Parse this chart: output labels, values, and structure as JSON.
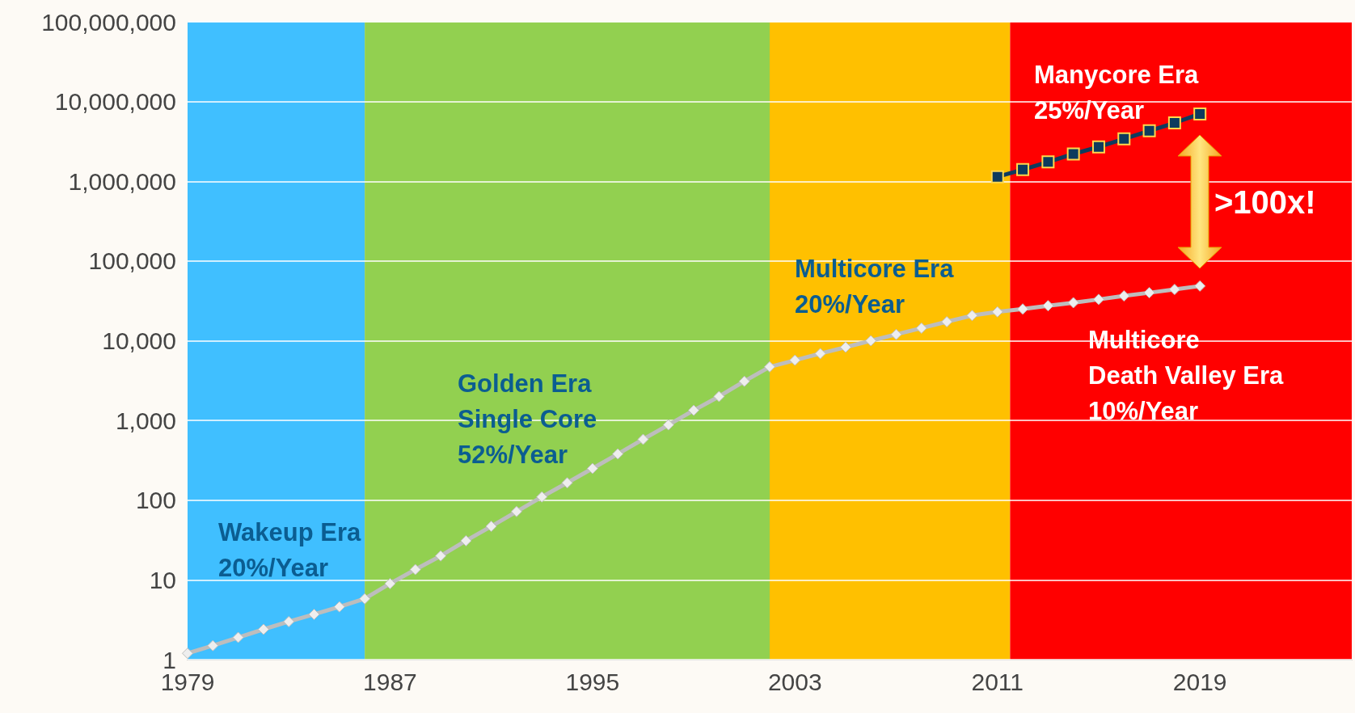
{
  "chart_data": {
    "type": "line",
    "log": "y",
    "grid": "y",
    "x": [
      1979,
      1980,
      1981,
      1982,
      1983,
      1984,
      1985,
      1986,
      1987,
      1988,
      1989,
      1990,
      1991,
      1992,
      1993,
      1994,
      1995,
      1996,
      1997,
      1998,
      1999,
      2000,
      2001,
      2002,
      2003,
      2004,
      2005,
      2006,
      2007,
      2008,
      2009,
      2010,
      2011,
      2012,
      2013,
      2014,
      2015,
      2016,
      2017,
      2018,
      2019
    ],
    "xlim": [
      1979,
      2025
    ],
    "xticks": [
      1979,
      1987,
      1995,
      2003,
      2011,
      2019
    ],
    "ylim": [
      1,
      100000000
    ],
    "yticks": [
      {
        "value": 1,
        "label": "1"
      },
      {
        "value": 10,
        "label": "10"
      },
      {
        "value": 100,
        "label": "100"
      },
      {
        "value": 1000,
        "label": "1,000"
      },
      {
        "value": 10000,
        "label": "10,000"
      },
      {
        "value": 100000,
        "label": "100,000"
      },
      {
        "value": 1000000,
        "label": "1,000,000"
      },
      {
        "value": 10000000,
        "label": "10,000,000"
      },
      {
        "value": 100000000,
        "label": "100,000,000"
      }
    ],
    "series": [
      {
        "color": "#bdbdbd",
        "marker": "diamond",
        "values": [
          1.2,
          1.5,
          1.9,
          2.4,
          3,
          3.7,
          4.6,
          5.8,
          9,
          13.5,
          20,
          31,
          47,
          72,
          110,
          165,
          250,
          380,
          580,
          880,
          1340,
          2000,
          3100,
          4700,
          5700,
          6900,
          8300,
          10000,
          12000,
          14400,
          17300,
          20700,
          23000,
          25000,
          27500,
          30000,
          33000,
          36500,
          40000,
          44000,
          48500
        ]
      },
      {
        "color": "#0d3b5e",
        "marker": "square",
        "x": [
          2011,
          2012,
          2013,
          2014,
          2015,
          2016,
          2017,
          2018,
          2019
        ],
        "values": [
          1140000,
          1400000,
          1750000,
          2200000,
          2700000,
          3400000,
          4300000,
          5400000,
          7000000
        ]
      }
    ],
    "bands": [
      {
        "axis": "x",
        "from": 1979,
        "to": 1986,
        "color": "#40bfff"
      },
      {
        "axis": "x",
        "from": 1986,
        "to": 2002,
        "color": "#92d050"
      },
      {
        "axis": "x",
        "from": 2002,
        "to": 2011.5,
        "color": "#ffc000"
      },
      {
        "axis": "x",
        "from": 2011.5,
        "to": 2025,
        "color": "#ff0000"
      }
    ],
    "annotations": [
      "Wakeup Era\n20%/Year",
      "Golden Era\nSingle Core\n52%/Year",
      "Multicore Era\n20%/Year",
      "Manycore Era\n25%/Year",
      "Multicore\nDeath Valley Era\n10%/Year",
      ">100x!"
    ]
  }
}
